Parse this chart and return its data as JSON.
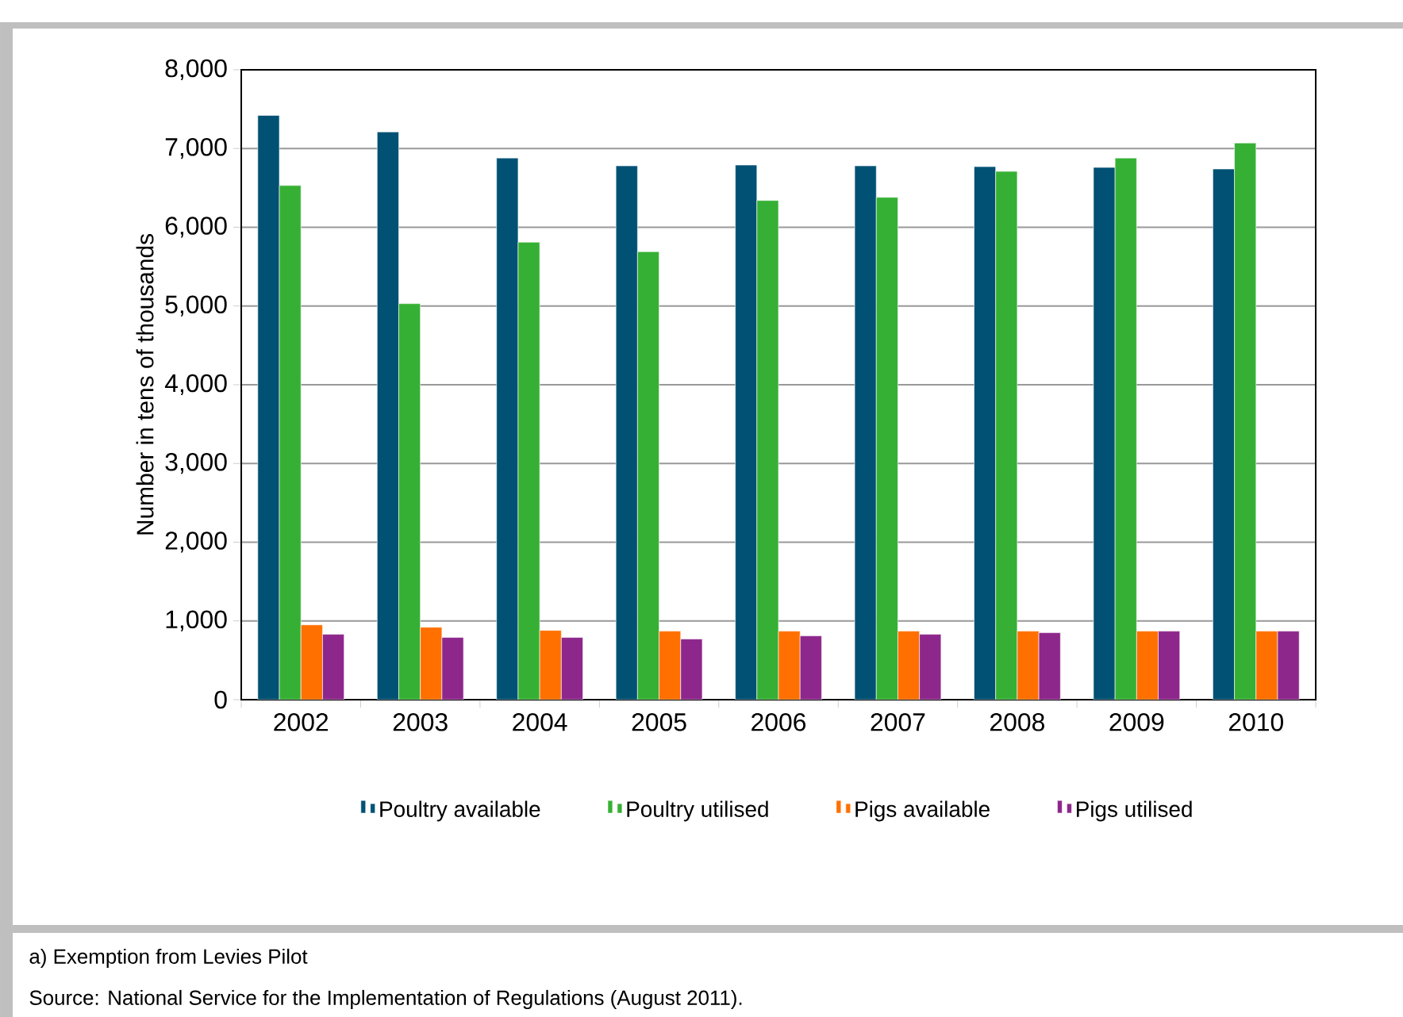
{
  "chart_data": {
    "type": "bar",
    "ylabel": "Number in tens of thousands",
    "categories": [
      "2002",
      "2003",
      "2004",
      "2005",
      "2006",
      "2007",
      "2008",
      "2009",
      "2010"
    ],
    "series": [
      {
        "name": "Poultry available",
        "color": "#005173",
        "values": [
          7420,
          7210,
          6880,
          6780,
          6790,
          6780,
          6770,
          6760,
          6740
        ]
      },
      {
        "name": "Poultry utilised",
        "color": "#36b034",
        "values": [
          6530,
          5030,
          5810,
          5690,
          6340,
          6380,
          6710,
          6880,
          7070
        ]
      },
      {
        "name": "Pigs available",
        "color": "#ff7000",
        "values": [
          950,
          920,
          880,
          870,
          870,
          870,
          870,
          870,
          870
        ]
      },
      {
        "name": "Pigs utilised",
        "color": "#8e278c",
        "values": [
          830,
          790,
          790,
          770,
          810,
          830,
          850,
          870,
          870
        ]
      }
    ],
    "ylim": [
      0,
      8000
    ],
    "yticks": [
      {
        "value": 0,
        "label": "0"
      },
      {
        "value": 1000,
        "label": "1,000"
      },
      {
        "value": 2000,
        "label": "2,000"
      },
      {
        "value": 3000,
        "label": "3,000"
      },
      {
        "value": 4000,
        "label": "4,000"
      },
      {
        "value": 5000,
        "label": "5,000"
      },
      {
        "value": 6000,
        "label": "6,000"
      },
      {
        "value": 7000,
        "label": "7,000"
      },
      {
        "value": 8000,
        "label": "8,000"
      }
    ],
    "grid": "y",
    "legend": "bottom",
    "annotations": [
      "a) Exemption from Levies Pilot",
      "Source: National Service for the Implementation of Regulations (August 2011)."
    ]
  }
}
